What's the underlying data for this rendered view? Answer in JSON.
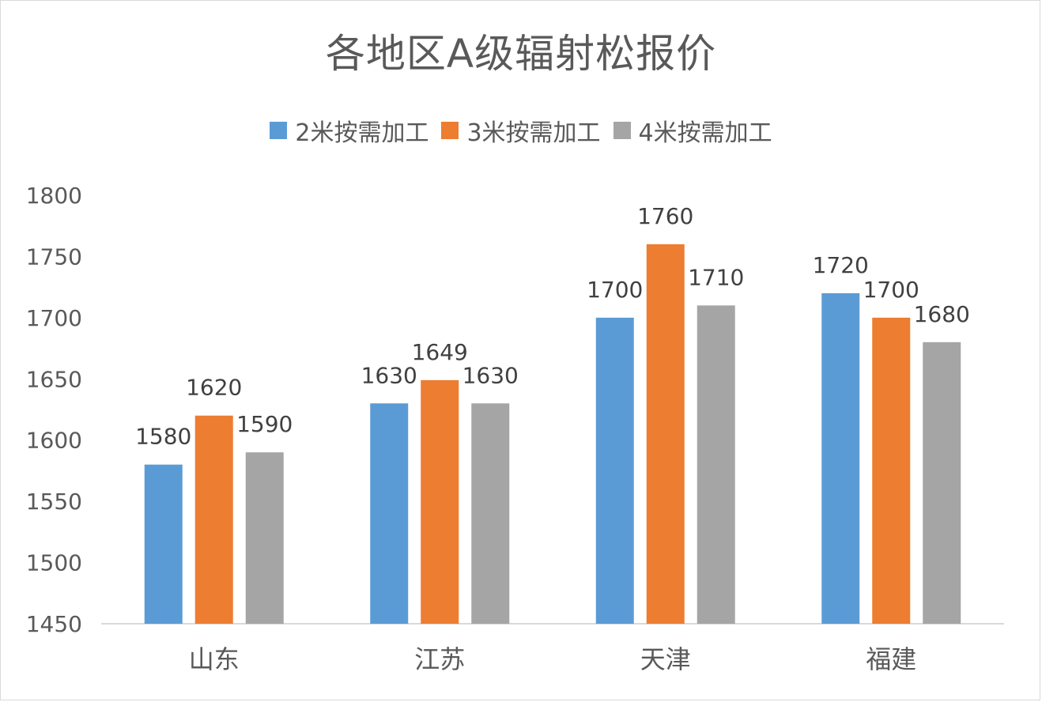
{
  "chart_data": {
    "type": "bar",
    "title": "各地区A级辐射松报价",
    "categories": [
      "山东",
      "江苏",
      "天津",
      "福建"
    ],
    "series": [
      {
        "name": "2米按需加工",
        "color": "#5b9bd5",
        "values": [
          1580,
          1630,
          1700,
          1720
        ]
      },
      {
        "name": "3米按需加工",
        "color": "#ed7d31",
        "values": [
          1620,
          1649,
          1760,
          1700
        ]
      },
      {
        "name": "4米按需加工",
        "color": "#a5a5a5",
        "values": [
          1590,
          1630,
          1710,
          1680
        ]
      }
    ],
    "ylim": [
      1450,
      1800
    ],
    "yticks": [
      "1800",
      "1750",
      "1700",
      "1650",
      "1600",
      "1550",
      "1500",
      "1450"
    ],
    "grid": false,
    "legend_position": "top"
  }
}
